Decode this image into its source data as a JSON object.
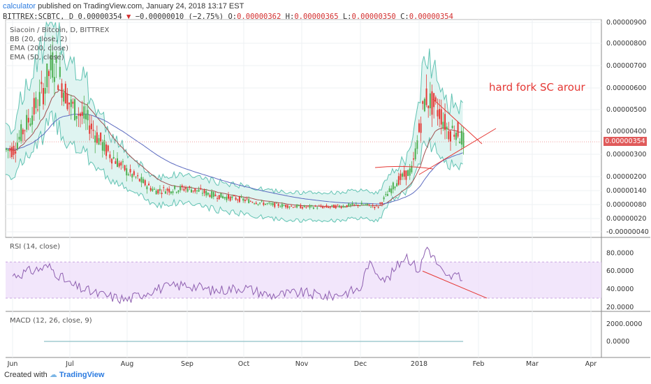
{
  "header": {
    "publisher": "calculator",
    "published_text": "published on TradingView.com, January 24, 2018 13:17 EST",
    "symbol": "BITTREX:SCBTC, D",
    "last": "0.00000354",
    "change_arrow": "▼",
    "change": "−0.00000010 (−2.75%)",
    "ohlc": {
      "o_label": "O:",
      "o": "0.00000362",
      "h_label": "H:",
      "h": "0.00000365",
      "l_label": "L:",
      "l": "0.00000350",
      "c_label": "C:",
      "c": "0.00000354"
    }
  },
  "legend": {
    "main": "Siacoin / Bitcoin, D, BITTREX",
    "bb": "BB (20, close, 2)",
    "ema200": "EMA (200, close)",
    "ema50": "EMA (50, close)",
    "rsi": "RSI (14, close)",
    "macd": "MACD (12, 26, close, 9)"
  },
  "annotation": "hard fork SC arour",
  "price_label": "0.00000354",
  "footer": {
    "created_with": "Created with",
    "brand": "TradingView"
  },
  "colors": {
    "up": "#4caf50",
    "down": "#e53935",
    "bb_fill": "#dff4f1",
    "bb_line": "#62c3b3",
    "ema50": "#a05050",
    "ema200": "#5c6bc0",
    "rsi_line": "#8e5fb0",
    "rsi_band": "#efe0fa",
    "trend": "#e53935",
    "price_tag": "#e05a5a",
    "macd_line": "#8fc1c7"
  },
  "chart_data": [
    {
      "type": "candlestick",
      "title": "Siacoin / Bitcoin, D, BITTREX",
      "y_ticks": [
        "0.00000900",
        "0.00000800",
        "0.00000700",
        "0.00000600",
        "0.00000500",
        "0.00000400",
        "0.00000300",
        "0.00000200",
        "0.00000140",
        "0.00000080",
        "0.00000020",
        "-0.00000040"
      ],
      "x_ticks": [
        "Jun",
        "Jul",
        "Aug",
        "Sep",
        "Oct",
        "Nov",
        "Dec",
        "2018",
        "Feb",
        "Mar",
        "Apr"
      ],
      "series": [
        {
          "name": "close",
          "x": [
            "2017-06-01",
            "2017-06-15",
            "2017-06-22",
            "2017-07-01",
            "2017-07-10",
            "2017-07-20",
            "2017-08-01",
            "2017-08-15",
            "2017-09-01",
            "2017-09-15",
            "2017-10-01",
            "2017-10-15",
            "2017-11-01",
            "2017-11-15",
            "2017-12-01",
            "2017-12-10",
            "2017-12-20",
            "2017-12-28",
            "2018-01-04",
            "2018-01-08",
            "2018-01-12",
            "2018-01-16",
            "2018-01-20",
            "2018-01-24"
          ],
          "values": [
            3.2e-06,
            5.5e-06,
            7.2e-06,
            5.2e-06,
            4.5e-06,
            3.2e-06,
            2.2e-06,
            1.4e-06,
            1.5e-06,
            1.2e-06,
            1e-06,
            8e-07,
            7e-07,
            7e-07,
            8e-07,
            7e-07,
            1.8e-06,
            2.3e-06,
            5.6e-06,
            5.2e-06,
            4.8e-06,
            4e-06,
            4.1e-06,
            3.54e-06
          ]
        }
      ],
      "last_price": 3.54e-06
    },
    {
      "type": "line",
      "title": "RSI (14, close)",
      "y_ticks": [
        "80.0000",
        "60.0000",
        "40.0000",
        "20.0000"
      ],
      "band": [
        30,
        70
      ],
      "series": [
        {
          "name": "RSI",
          "x": [
            "2017-06-01",
            "2017-06-20",
            "2017-07-01",
            "2017-07-15",
            "2017-08-01",
            "2017-08-15",
            "2017-09-01",
            "2017-09-15",
            "2017-10-01",
            "2017-10-15",
            "2017-11-01",
            "2017-11-15",
            "2017-12-01",
            "2017-12-05",
            "2017-12-15",
            "2017-12-25",
            "2018-01-01",
            "2018-01-05",
            "2018-01-10",
            "2018-01-15",
            "2018-01-20",
            "2018-01-24"
          ],
          "values": [
            55,
            65,
            45,
            35,
            28,
            40,
            45,
            38,
            42,
            33,
            36,
            32,
            40,
            68,
            50,
            78,
            60,
            88,
            70,
            52,
            55,
            49
          ]
        }
      ]
    },
    {
      "type": "line",
      "title": "MACD (12, 26, close, 9)",
      "y_ticks": [
        "2000.0000",
        "0.0000"
      ],
      "series": [
        {
          "name": "MACD",
          "x": [
            "2017-06-01",
            "2018-01-24"
          ],
          "values": [
            0,
            0
          ]
        }
      ]
    }
  ]
}
